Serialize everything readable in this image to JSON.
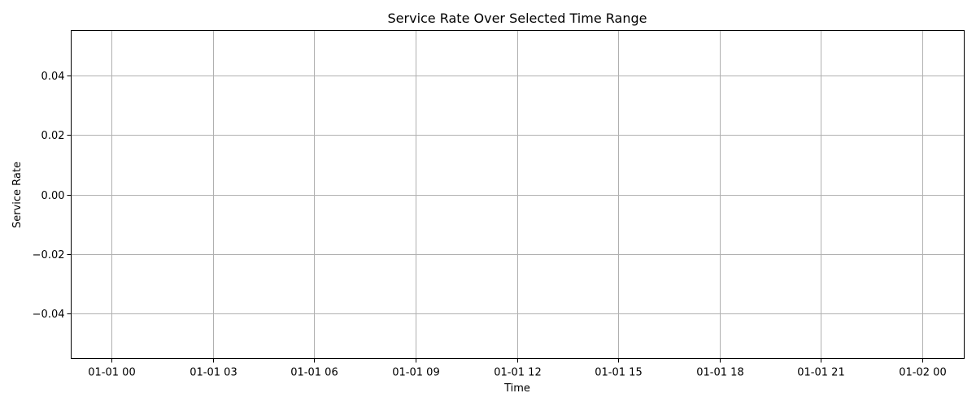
{
  "chart_data": {
    "type": "line",
    "title": "Service Rate Over Selected Time Range",
    "xlabel": "Time",
    "ylabel": "Service Rate",
    "x_ticks": [
      {
        "value": "2000-01-01T00:00",
        "label": "01-01 00"
      },
      {
        "value": "2000-01-01T03:00",
        "label": "01-01 03"
      },
      {
        "value": "2000-01-01T06:00",
        "label": "01-01 06"
      },
      {
        "value": "2000-01-01T09:00",
        "label": "01-01 09"
      },
      {
        "value": "2000-01-01T12:00",
        "label": "01-01 12"
      },
      {
        "value": "2000-01-01T15:00",
        "label": "01-01 15"
      },
      {
        "value": "2000-01-01T18:00",
        "label": "01-01 18"
      },
      {
        "value": "2000-01-01T21:00",
        "label": "01-01 21"
      },
      {
        "value": "2000-01-02T00:00",
        "label": "01-02 00"
      }
    ],
    "y_ticks": [
      {
        "value": 0.04,
        "label": "0.04"
      },
      {
        "value": 0.02,
        "label": "0.02"
      },
      {
        "value": 0.0,
        "label": "0.00"
      },
      {
        "value": -0.02,
        "label": "−0.02"
      },
      {
        "value": -0.04,
        "label": "−0.04"
      }
    ],
    "xlim": [
      "2000-01-01T00:00",
      "2000-01-02T00:00"
    ],
    "ylim": [
      -0.055,
      0.055
    ],
    "grid": true,
    "series": []
  }
}
